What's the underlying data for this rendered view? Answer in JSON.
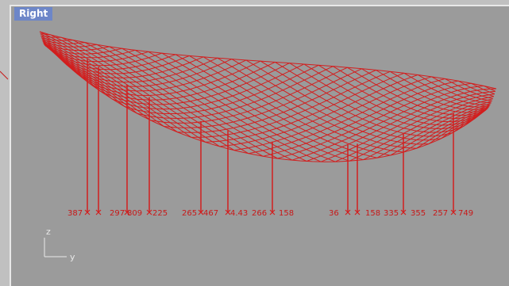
{
  "viewport": {
    "title": "Right"
  },
  "axis": {
    "vertical": "z",
    "horizontal": "y"
  },
  "column_labels": [
    "387",
    "",
    "",
    "297",
    "809",
    "225",
    "265",
    "467",
    "4.43",
    "266",
    "158",
    "36",
    "",
    "",
    "",
    "158",
    "335",
    "355",
    "257",
    "749"
  ],
  "colors": {
    "mesh": "#d21e1e",
    "viewport_background": "#9b9b9b",
    "tab": "#6d86c8"
  }
}
